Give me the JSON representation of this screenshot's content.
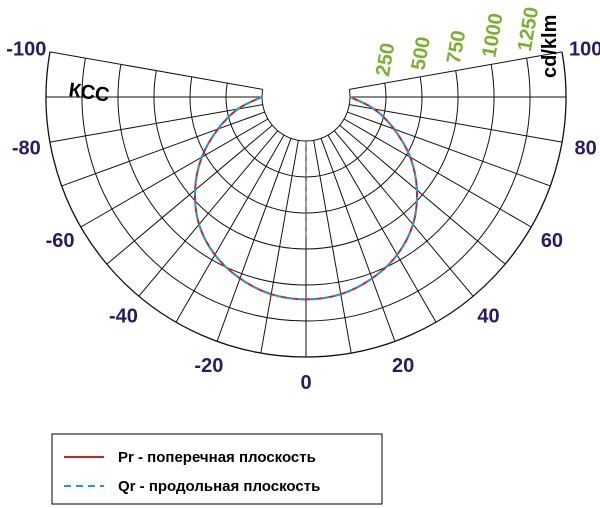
{
  "chart_data": {
    "type": "polar",
    "unit_left": "КСС",
    "unit_right": "cd/klm",
    "angle_ticks": [
      {
        "label": "-100",
        "angle": -100
      },
      {
        "label": "-80",
        "angle": -80
      },
      {
        "label": "-60",
        "angle": -60
      },
      {
        "label": "-40",
        "angle": -40
      },
      {
        "label": "-20",
        "angle": -20
      },
      {
        "label": "0",
        "angle": 0
      },
      {
        "label": "20",
        "angle": 20
      },
      {
        "label": "40",
        "angle": 40
      },
      {
        "label": "60",
        "angle": 60
      },
      {
        "label": "80",
        "angle": 80
      },
      {
        "label": "100",
        "angle": 100
      }
    ],
    "angle_range": [
      -100,
      100
    ],
    "angle_grid_step": 10,
    "radial_ticks": [
      {
        "label": "250",
        "value": 250
      },
      {
        "label": "500",
        "value": 500
      },
      {
        "label": "750",
        "value": 750
      },
      {
        "label": "1000",
        "value": 1000
      },
      {
        "label": "1250",
        "value": 1250
      }
    ],
    "radial_range": [
      0,
      1500
    ],
    "series": [
      {
        "name": "Pr - поперечная плоскость",
        "color": "#cc2222",
        "style": "solid",
        "angles": [
          0,
          10,
          20,
          30,
          40,
          50,
          60,
          70,
          80,
          90
        ],
        "values": [
          1100,
          1085,
          1035,
          960,
          850,
          700,
          530,
          345,
          175,
          0
        ]
      },
      {
        "name": "Qr - продольная плоскость",
        "color": "#2299dd",
        "style": "dashed",
        "angles": [
          0,
          10,
          20,
          30,
          40,
          50,
          60,
          70,
          80,
          90
        ],
        "values": [
          1100,
          1085,
          1035,
          960,
          850,
          700,
          530,
          345,
          175,
          0
        ]
      }
    ]
  }
}
